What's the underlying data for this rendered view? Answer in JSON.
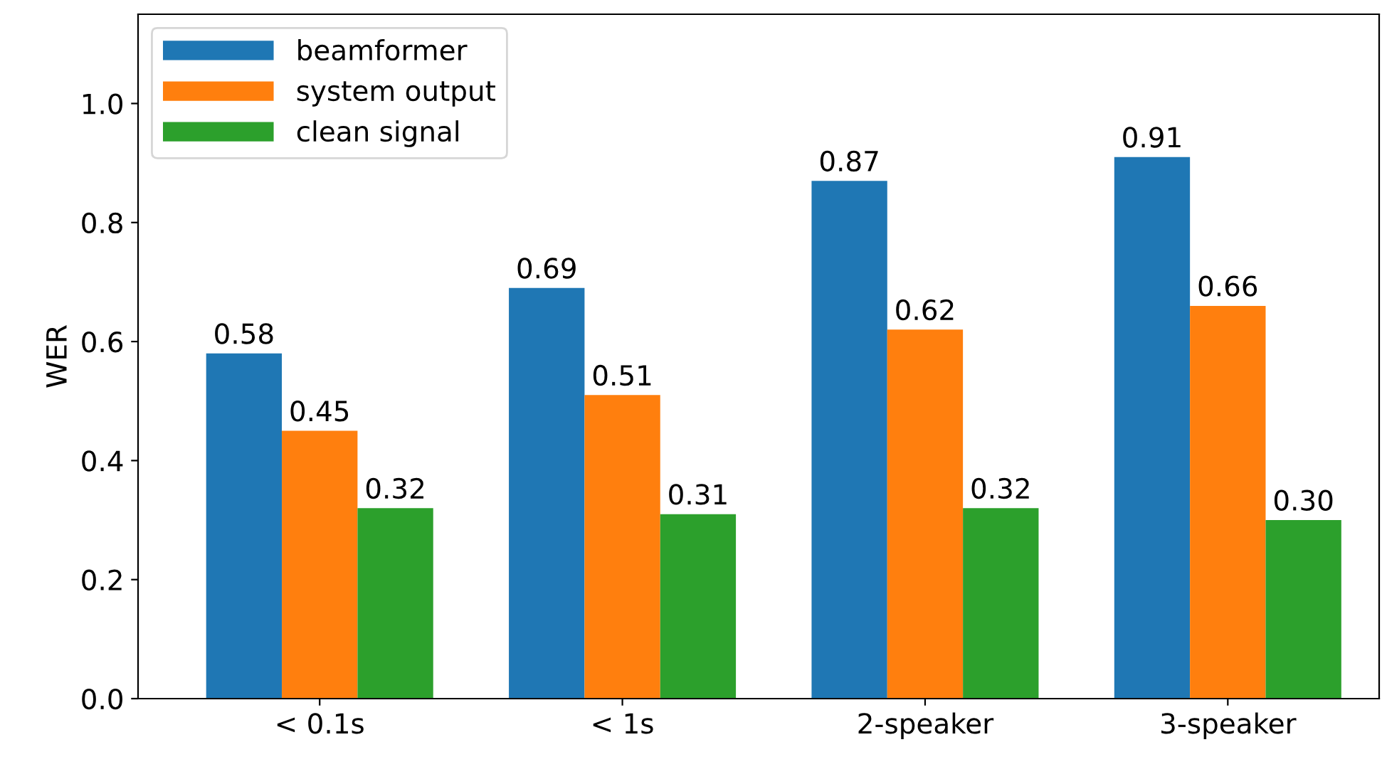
{
  "chart_data": {
    "type": "bar",
    "ylabel": "WER",
    "categories": [
      "< 0.1s",
      "< 1s",
      "2-speaker",
      "3-speaker"
    ],
    "series": [
      {
        "name": "beamformer",
        "color": "#1f77b4",
        "values": [
          0.58,
          0.69,
          0.87,
          0.91
        ],
        "value_labels": [
          "0.58",
          "0.69",
          "0.87",
          "0.91"
        ]
      },
      {
        "name": "system output",
        "color": "#ff7f0e",
        "values": [
          0.45,
          0.51,
          0.62,
          0.66
        ],
        "value_labels": [
          "0.45",
          "0.51",
          "0.62",
          "0.66"
        ]
      },
      {
        "name": "clean signal",
        "color": "#2ca02c",
        "values": [
          0.32,
          0.31,
          0.32,
          0.3
        ],
        "value_labels": [
          "0.32",
          "0.31",
          "0.32",
          "0.30"
        ]
      }
    ],
    "ylim": [
      0,
      1.15
    ],
    "yticks": [
      {
        "value": 0,
        "label": "0.0"
      },
      0.2,
      0.4,
      0.6,
      0.8,
      {
        "value": 1,
        "label": "1.0"
      }
    ],
    "grid": false,
    "legend": "top left"
  }
}
